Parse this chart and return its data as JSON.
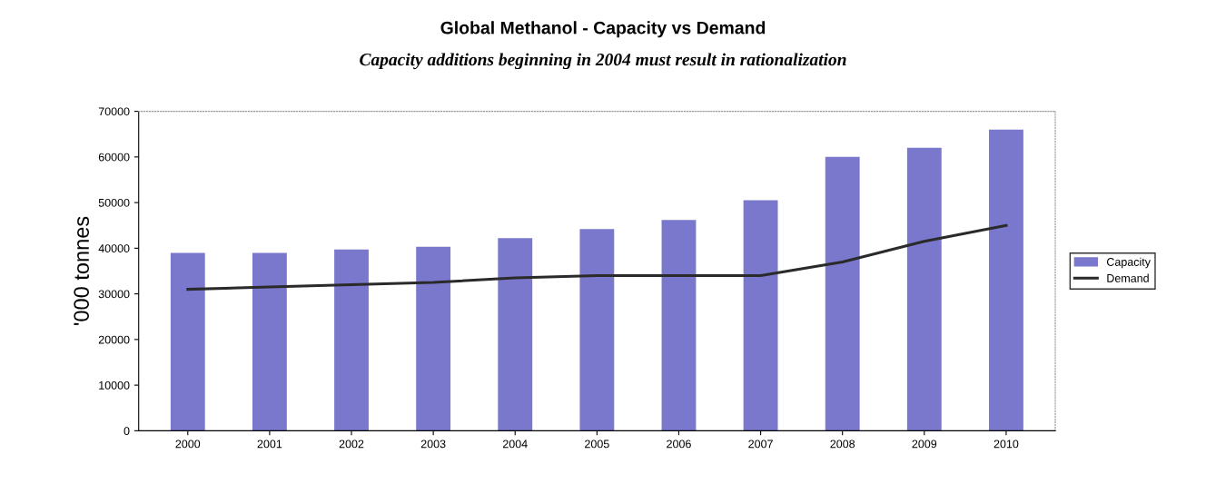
{
  "chart_data": {
    "type": "bar",
    "title": "Global Methanol - Capacity vs Demand",
    "subtitle": "Capacity additions beginning in 2004 must result in rationalization",
    "ylabel": "'000 tonnes",
    "categories": [
      "2000",
      "2001",
      "2002",
      "2003",
      "2004",
      "2005",
      "2006",
      "2007",
      "2008",
      "2009",
      "2010"
    ],
    "series": [
      {
        "name": "Capacity",
        "color": "#7a78cc",
        "values": [
          39000,
          39000,
          39700,
          40300,
          42200,
          44200,
          46200,
          50500,
          60000,
          62000,
          66000
        ]
      },
      {
        "name": "Demand",
        "type": "line",
        "color": "#2a2a2a",
        "values": [
          31000,
          31500,
          32000,
          32500,
          33500,
          34000,
          34000,
          34000,
          37000,
          41500,
          45000
        ]
      }
    ],
    "ylim": [
      0,
      70000
    ],
    "yticks": [
      0,
      10000,
      20000,
      30000,
      40000,
      50000,
      60000,
      70000
    ],
    "grid": false,
    "legend": "right",
    "marker": "none",
    "line_style": "solid"
  }
}
